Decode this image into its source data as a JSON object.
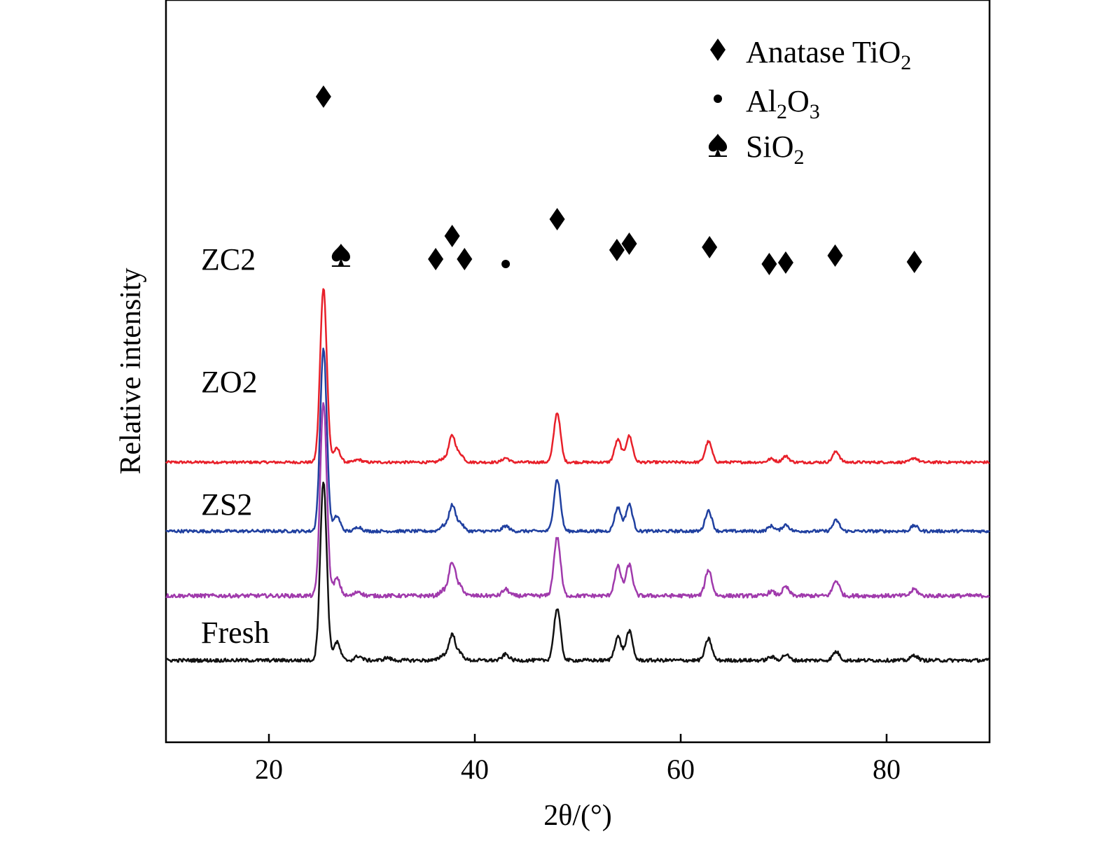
{
  "chart_data": {
    "type": "line",
    "xlabel": "2θ/(°)",
    "ylabel": "Relative intensity",
    "xlim": [
      10,
      90
    ],
    "xticks": [
      20,
      40,
      60,
      80
    ],
    "y_ticks_shown": false,
    "grid": false,
    "legend_position": "top-right",
    "legend": [
      {
        "marker": "diamond",
        "label": "Anatase TiO",
        "subscript": "2"
      },
      {
        "marker": "dot",
        "label": "Al",
        "subscript": "2",
        "label2": "O",
        "subscript2": "3"
      },
      {
        "marker": "spade",
        "label": "SiO",
        "subscript": "2"
      }
    ],
    "series": [
      {
        "name": "ZC2",
        "color": "#e8202a",
        "baseline": 4.6,
        "noise": 0.03,
        "peaks": [
          [
            25.3,
            4.05
          ],
          [
            26.6,
            0.32
          ],
          [
            28.7,
            0.06
          ],
          [
            36.9,
            0.08
          ],
          [
            37.8,
            0.62
          ],
          [
            38.6,
            0.18
          ],
          [
            43.0,
            0.1
          ],
          [
            48.0,
            1.15
          ],
          [
            53.9,
            0.52
          ],
          [
            55.0,
            0.61
          ],
          [
            62.7,
            0.48
          ],
          [
            68.8,
            0.08
          ],
          [
            70.2,
            0.14
          ],
          [
            75.1,
            0.25
          ],
          [
            82.7,
            0.1
          ]
        ]
      },
      {
        "name": "ZO2",
        "color": "#2040a0",
        "baseline": 3.0,
        "noise": 0.035,
        "peaks": [
          [
            25.3,
            4.25
          ],
          [
            26.6,
            0.35
          ],
          [
            28.7,
            0.1
          ],
          [
            36.9,
            0.12
          ],
          [
            37.8,
            0.6
          ],
          [
            38.6,
            0.18
          ],
          [
            43.0,
            0.12
          ],
          [
            48.0,
            1.2
          ],
          [
            53.9,
            0.55
          ],
          [
            55.0,
            0.62
          ],
          [
            62.7,
            0.48
          ],
          [
            68.8,
            0.12
          ],
          [
            70.2,
            0.15
          ],
          [
            75.1,
            0.25
          ],
          [
            82.7,
            0.13
          ]
        ]
      },
      {
        "name": "ZS2",
        "color": "#a03aac",
        "baseline": 1.5,
        "noise": 0.045,
        "peaks": [
          [
            25.3,
            4.5
          ],
          [
            26.6,
            0.4
          ],
          [
            28.7,
            0.1
          ],
          [
            36.9,
            0.12
          ],
          [
            37.8,
            0.78
          ],
          [
            38.6,
            0.2
          ],
          [
            43.0,
            0.15
          ],
          [
            48.0,
            1.35
          ],
          [
            53.9,
            0.68
          ],
          [
            55.0,
            0.72
          ],
          [
            62.7,
            0.6
          ],
          [
            68.8,
            0.1
          ],
          [
            70.2,
            0.2
          ],
          [
            75.1,
            0.35
          ],
          [
            82.7,
            0.15
          ]
        ]
      },
      {
        "name": "Fresh",
        "color": "#111111",
        "baseline": 0.0,
        "noise": 0.04,
        "peaks": [
          [
            25.3,
            4.15
          ],
          [
            26.6,
            0.42
          ],
          [
            28.7,
            0.1
          ],
          [
            31.5,
            0.06
          ],
          [
            36.9,
            0.12
          ],
          [
            37.8,
            0.6
          ],
          [
            38.6,
            0.15
          ],
          [
            43.0,
            0.14
          ],
          [
            48.0,
            1.2
          ],
          [
            53.9,
            0.55
          ],
          [
            55.0,
            0.68
          ],
          [
            62.7,
            0.5
          ],
          [
            68.8,
            0.08
          ],
          [
            70.2,
            0.13
          ],
          [
            75.1,
            0.2
          ],
          [
            82.7,
            0.12
          ]
        ]
      }
    ],
    "phase_markers": [
      {
        "marker": "diamond",
        "x": 25.3
      },
      {
        "marker": "spade",
        "x": 27.0
      },
      {
        "marker": "diamond",
        "x": 36.2
      },
      {
        "marker": "diamond",
        "x": 37.8
      },
      {
        "marker": "diamond",
        "x": 39.0
      },
      {
        "marker": "dot",
        "x": 43.0
      },
      {
        "marker": "diamond",
        "x": 48.0
      },
      {
        "marker": "diamond",
        "x": 53.8
      },
      {
        "marker": "diamond",
        "x": 55.0
      },
      {
        "marker": "diamond",
        "x": 62.8
      },
      {
        "marker": "diamond",
        "x": 68.6
      },
      {
        "marker": "diamond",
        "x": 70.2
      },
      {
        "marker": "diamond",
        "x": 75.0
      },
      {
        "marker": "diamond",
        "x": 82.7
      }
    ]
  }
}
